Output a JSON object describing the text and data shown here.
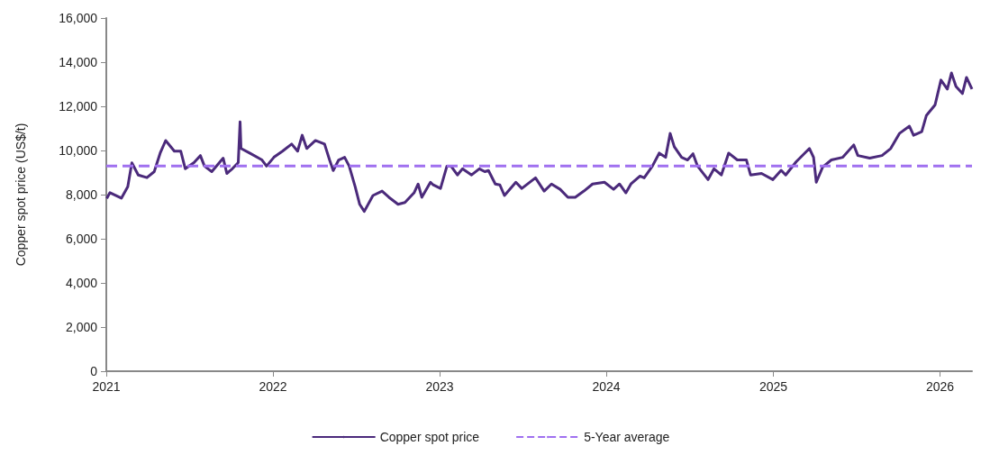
{
  "chart_data": {
    "type": "line",
    "ylabel": "Copper spot price (US$/t)",
    "xlim": [
      "2021-01-01",
      "2026-03-12"
    ],
    "xticks": [
      "2021",
      "2022",
      "2023",
      "2024",
      "2025",
      "2026"
    ],
    "ylim": [
      0,
      16000
    ],
    "yticks": [
      {
        "value": 0,
        "label": "0"
      },
      {
        "value": 2000,
        "label": "2,000"
      },
      {
        "value": 4000,
        "label": "4,000"
      },
      {
        "value": 6000,
        "label": "6,000"
      },
      {
        "value": 8000,
        "label": "8,000"
      },
      {
        "value": 10000,
        "label": "10,000"
      },
      {
        "value": 12000,
        "label": "12,000"
      },
      {
        "value": 14000,
        "label": "14,000"
      },
      {
        "value": 16000,
        "label": "16,000"
      }
    ],
    "grid": false,
    "legend": "bottom",
    "marker": "none",
    "series": [
      {
        "name": "Copper spot price",
        "color": "#4b2a7b",
        "line_style": "solid",
        "x": [
          "2021-01-02",
          "2021-01-09",
          "2021-02-03",
          "2021-02-17",
          "2021-02-26",
          "2021-03-12",
          "2021-03-31",
          "2021-04-16",
          "2021-04-29",
          "2021-05-11",
          "2021-05-30",
          "2021-06-13",
          "2021-06-23",
          "2021-07-12",
          "2021-07-26",
          "2021-08-04",
          "2021-08-20",
          "2021-09-14",
          "2021-09-22",
          "2021-10-04",
          "2021-10-17",
          "2021-10-21",
          "2021-10-23",
          "2021-11-11",
          "2021-12-08",
          "2021-12-18",
          "2022-01-03",
          "2022-01-22",
          "2022-02-11",
          "2022-02-24",
          "2022-03-06",
          "2022-03-16",
          "2022-04-04",
          "2022-04-24",
          "2022-05-05",
          "2022-05-13",
          "2022-05-25",
          "2022-06-07",
          "2022-06-17",
          "2022-06-30",
          "2022-07-10",
          "2022-07-20",
          "2022-08-08",
          "2022-08-28",
          "2022-09-12",
          "2022-10-02",
          "2022-10-17",
          "2022-11-06",
          "2022-11-15",
          "2022-11-23",
          "2022-12-12",
          "2022-12-18",
          "2023-01-03",
          "2023-01-17",
          "2023-01-26",
          "2023-02-09",
          "2023-02-20",
          "2023-03-12",
          "2023-03-29",
          "2023-04-10",
          "2023-04-18",
          "2023-05-03",
          "2023-05-13",
          "2023-05-23",
          "2023-06-17",
          "2023-06-30",
          "2023-07-30",
          "2023-08-18",
          "2023-09-03",
          "2023-09-22",
          "2023-10-09",
          "2023-10-25",
          "2023-11-13",
          "2023-12-02",
          "2023-12-28",
          "2024-01-17",
          "2024-01-30",
          "2024-02-13",
          "2024-02-24",
          "2024-03-15",
          "2024-03-24",
          "2024-04-11",
          "2024-04-26",
          "2024-05-10",
          "2024-05-20",
          "2024-05-29",
          "2024-06-14",
          "2024-06-27",
          "2024-07-09",
          "2024-07-19",
          "2024-08-11",
          "2024-08-24",
          "2024-09-09",
          "2024-09-25",
          "2024-10-14",
          "2024-11-03",
          "2024-11-12",
          "2024-12-06",
          "2024-12-31",
          "2025-01-18",
          "2025-01-28",
          "2025-02-20",
          "2025-03-21",
          "2025-03-30",
          "2025-04-05",
          "2025-04-19",
          "2025-05-08",
          "2025-06-02",
          "2025-06-26",
          "2025-07-05",
          "2025-07-31",
          "2025-08-27",
          "2025-09-15",
          "2025-10-04",
          "2025-10-26",
          "2025-11-04",
          "2025-11-22",
          "2025-12-02",
          "2025-12-21",
          "2026-01-03",
          "2026-01-17",
          "2026-01-26",
          "2026-02-05",
          "2026-02-19",
          "2026-02-28",
          "2026-03-12"
        ],
        "values": [
          7830,
          8090,
          7840,
          8360,
          9440,
          8890,
          8770,
          9040,
          9880,
          10450,
          9970,
          9970,
          9170,
          9450,
          9770,
          9290,
          9040,
          9650,
          8960,
          9170,
          9450,
          11300,
          10090,
          9880,
          9570,
          9290,
          9690,
          9970,
          10290,
          9970,
          10690,
          10090,
          10450,
          10290,
          9570,
          9090,
          9570,
          9690,
          9290,
          8360,
          7560,
          7240,
          7960,
          8160,
          7880,
          7560,
          7640,
          8080,
          8480,
          7880,
          8560,
          8440,
          8280,
          9290,
          9290,
          8890,
          9170,
          8890,
          9170,
          9040,
          9090,
          8480,
          8440,
          7960,
          8560,
          8280,
          8760,
          8160,
          8480,
          8240,
          7880,
          7880,
          8160,
          8480,
          8560,
          8240,
          8480,
          8080,
          8480,
          8840,
          8760,
          9290,
          9880,
          9690,
          10770,
          10170,
          9690,
          9570,
          9850,
          9290,
          8680,
          9170,
          8890,
          9880,
          9570,
          9570,
          8890,
          8960,
          8680,
          9100,
          8890,
          9490,
          10090,
          9690,
          8560,
          9250,
          9570,
          9690,
          10250,
          9770,
          9650,
          9770,
          10090,
          10770,
          11100,
          10690,
          10850,
          11580,
          12060,
          13190,
          12780,
          13510,
          12900,
          12580,
          13310,
          12780
        ]
      },
      {
        "name": "5-Year average",
        "color": "#a070f0",
        "line_style": "dashed",
        "x": [
          "2021-01-01",
          "2026-03-12"
        ],
        "values": [
          9300,
          9300
        ]
      }
    ]
  }
}
